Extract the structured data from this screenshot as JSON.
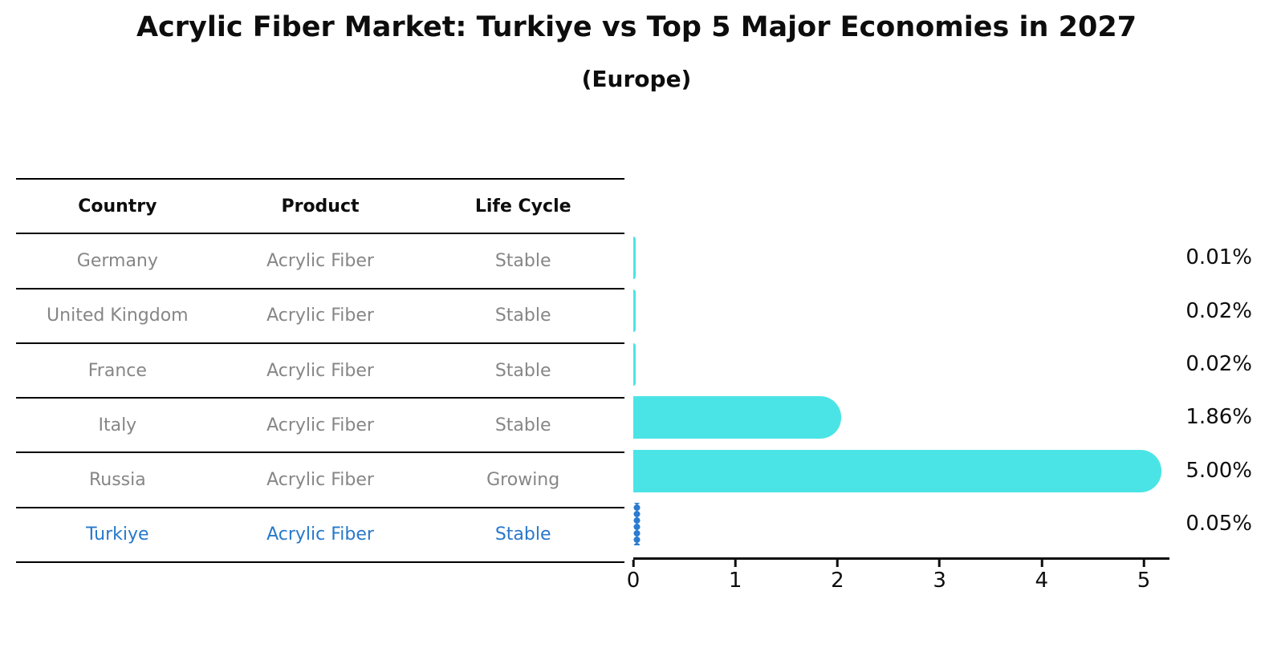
{
  "title": "Acrylic Fiber Market: Turkiye vs Top 5 Major Economies in 2027",
  "subtitle": "(Europe)",
  "table": {
    "headers": [
      "Country",
      "Product",
      "Life Cycle"
    ],
    "rows": [
      {
        "country": "Germany",
        "product": "Acrylic Fiber",
        "life_cycle": "Stable",
        "highlight": false
      },
      {
        "country": "United Kingdom",
        "product": "Acrylic Fiber",
        "life_cycle": "Stable",
        "highlight": false
      },
      {
        "country": "France",
        "product": "Acrylic Fiber",
        "life_cycle": "Stable",
        "highlight": false
      },
      {
        "country": "Italy",
        "product": "Acrylic Fiber",
        "life_cycle": "Stable",
        "highlight": false
      },
      {
        "country": "Russia",
        "product": "Acrylic Fiber",
        "life_cycle": "Growing",
        "highlight": false
      },
      {
        "country": "Turkiye",
        "product": "Acrylic Fiber",
        "life_cycle": "Stable",
        "highlight": true
      }
    ]
  },
  "chart_data": {
    "type": "bar",
    "orientation": "horizontal",
    "title": "Acrylic Fiber Market: Turkiye vs Top 5 Major Economies in 2027 (Europe)",
    "categories": [
      "Germany",
      "United Kingdom",
      "France",
      "Italy",
      "Russia",
      "Turkiye"
    ],
    "values": [
      0.01,
      0.02,
      0.02,
      1.86,
      5.0,
      0.05
    ],
    "value_labels": [
      "0.01%",
      "0.02%",
      "0.02%",
      "1.86%",
      "5.00%",
      "0.05%"
    ],
    "x_ticks": [
      "0",
      "1",
      "2",
      "3",
      "4",
      "5"
    ],
    "xlim": [
      0,
      5.25
    ],
    "xlabel": "",
    "ylabel": "",
    "grid": false,
    "legend": false,
    "bar_color": "#4be4e6",
    "highlight_color": "#2b7bd0",
    "highlight_index": 5,
    "highlight_style": "dotted",
    "text_colors": {
      "header": "#0d0d0d",
      "cell": "#868686",
      "highlight_row": "#2778cb"
    }
  }
}
